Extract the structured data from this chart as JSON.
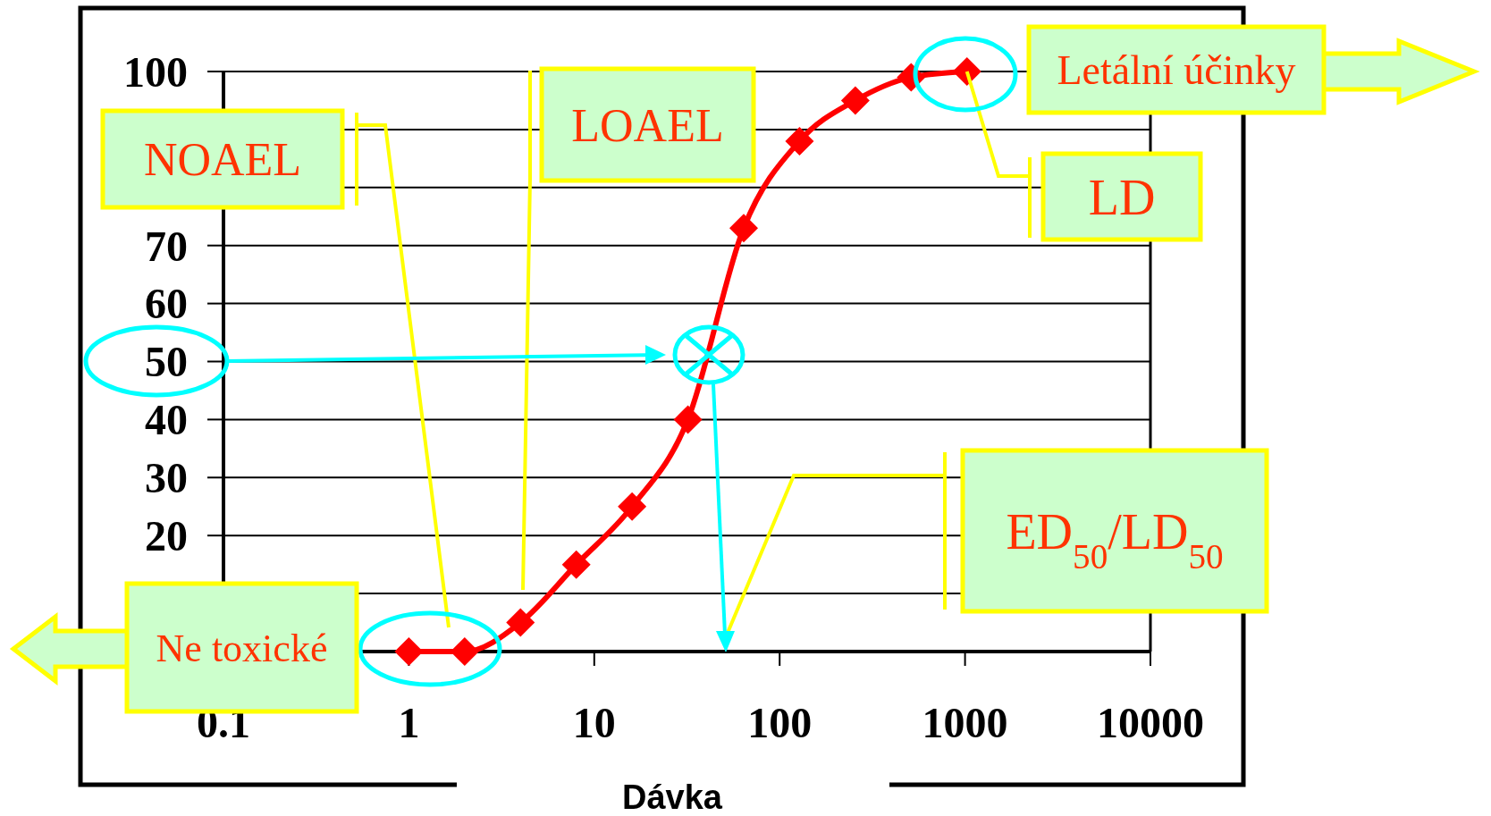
{
  "chart_data": {
    "type": "line",
    "xlabel": "Dávka",
    "log": "x",
    "grid": "y",
    "marker": "diamond",
    "line_style": "solid",
    "x": [
      1,
      2,
      4,
      8,
      16,
      32,
      64,
      128,
      256,
      512,
      1024
    ],
    "series": [
      {
        "color": "#ff0000",
        "values": [
          0,
          0,
          5,
          15,
          25,
          40,
          73,
          88,
          95,
          99,
          100
        ]
      }
    ],
    "xlim": [
      0.1,
      10000
    ],
    "xticks": [
      0.1,
      1,
      10,
      100,
      1000,
      10000
    ],
    "ylim": [
      0,
      100
    ],
    "yticks": [
      {
        "value": 0,
        "label": null
      },
      {
        "value": 10,
        "label": null
      },
      20,
      30,
      40,
      50,
      60,
      70,
      {
        "value": 80,
        "label": null
      },
      {
        "value": 90,
        "label": null
      },
      100
    ],
    "annotations": [
      "NOAEL",
      "LOAEL",
      "Letální účinky",
      {
        "text": "LD",
        "x": 1024,
        "y": 100
      },
      "ED$_{50}$/LD$_{50}$",
      "Ne toxické"
    ]
  }
}
